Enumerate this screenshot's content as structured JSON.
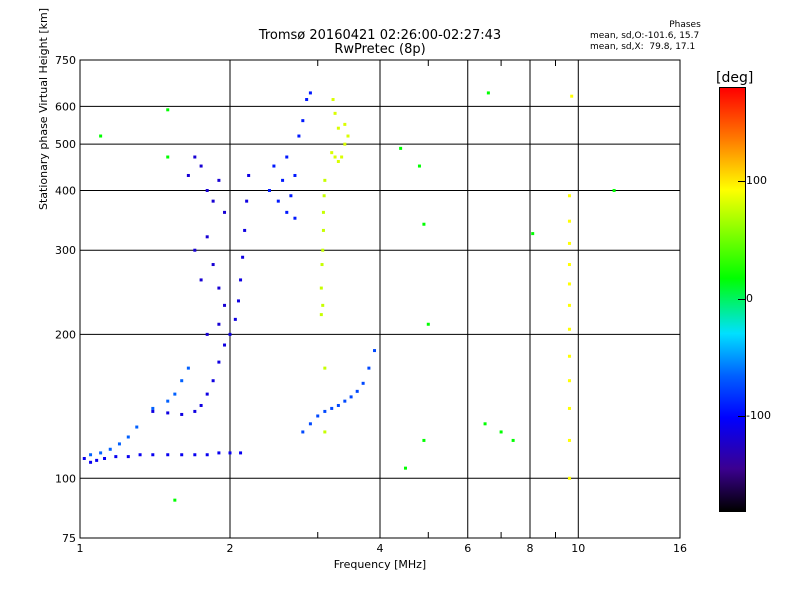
{
  "header": {
    "title_line1": "Tromsø 20160421 02:26:00-02:27:43",
    "title_line2": "RwPretec (8p)"
  },
  "stats": {
    "heading": "Phases",
    "line1": "mean, sd,O:-101.6, 15.7",
    "line2": "mean, sd,X:  79.8, 17.1"
  },
  "colorbar": {
    "label": "[deg]",
    "ticks": [
      "100",
      "0",
      "-100"
    ],
    "tick_values": [
      100,
      0,
      -100
    ],
    "range": [
      -180,
      180
    ]
  },
  "chart_data": {
    "type": "scatter",
    "title": "Tromsø 20160421 02:26:00-02:27:43",
    "subtitle": "RwPretec (8p)",
    "xlabel": "Frequency [MHz]",
    "ylabel": "Stationary phase Virtual Height [km]",
    "x_scale": "log",
    "y_scale": "log",
    "xlim": [
      1,
      16
    ],
    "ylim": [
      75,
      750
    ],
    "x_ticks": [
      1,
      2,
      4,
      6,
      8,
      10,
      16
    ],
    "x_tick_labels": [
      "1",
      "2",
      "4",
      "6",
      "8",
      "10",
      "16"
    ],
    "x_minor": [
      3,
      5,
      7,
      9
    ],
    "y_ticks": [
      75,
      100,
      200,
      300,
      400,
      500,
      600,
      750
    ],
    "y_tick_labels": [
      "75",
      "100",
      "200",
      "300",
      "400",
      "500",
      "600",
      "750"
    ],
    "grid": true,
    "series": [
      {
        "traces": [
          {
            "desc": "O-mode low trace",
            "color_phase": -105,
            "points": [
              [
                1.02,
                110
              ],
              [
                1.05,
                108
              ],
              [
                1.08,
                109
              ],
              [
                1.12,
                110
              ],
              [
                1.18,
                111
              ],
              [
                1.25,
                111
              ],
              [
                1.32,
                112
              ],
              [
                1.4,
                112
              ],
              [
                1.5,
                112
              ],
              [
                1.6,
                112
              ],
              [
                1.7,
                112
              ],
              [
                1.8,
                112
              ],
              [
                1.9,
                113
              ],
              [
                2.0,
                113
              ],
              [
                2.1,
                113
              ]
            ]
          },
          {
            "desc": "low X trace",
            "color_phase": -60,
            "points": [
              [
                1.05,
                112
              ],
              [
                1.1,
                113
              ],
              [
                1.15,
                115
              ],
              [
                1.2,
                118
              ],
              [
                1.25,
                122
              ],
              [
                1.3,
                128
              ],
              [
                1.4,
                140
              ],
              [
                1.5,
                145
              ],
              [
                1.55,
                150
              ],
              [
                1.6,
                160
              ],
              [
                1.65,
                170
              ]
            ]
          },
          {
            "desc": "E-F rise",
            "color_phase": -110,
            "points": [
              [
                1.4,
                138
              ],
              [
                1.5,
                137
              ],
              [
                1.6,
                136
              ],
              [
                1.7,
                138
              ],
              [
                1.75,
                142
              ],
              [
                1.8,
                150
              ],
              [
                1.85,
                160
              ],
              [
                1.9,
                175
              ],
              [
                1.95,
                190
              ],
              [
                2.0,
                200
              ],
              [
                2.05,
                215
              ],
              [
                2.08,
                235
              ],
              [
                2.1,
                260
              ],
              [
                2.12,
                290
              ],
              [
                2.14,
                330
              ],
              [
                2.16,
                380
              ],
              [
                2.18,
                430
              ]
            ]
          },
          {
            "desc": "F cloud",
            "color_phase": -115,
            "points": [
              [
                1.65,
                430
              ],
              [
                1.7,
                470
              ],
              [
                1.75,
                450
              ],
              [
                1.8,
                400
              ],
              [
                1.85,
                380
              ],
              [
                1.9,
                420
              ],
              [
                1.95,
                360
              ],
              [
                1.8,
                320
              ],
              [
                1.85,
                280
              ],
              [
                1.9,
                250
              ],
              [
                1.95,
                230
              ],
              [
                1.9,
                210
              ],
              [
                1.8,
                200
              ],
              [
                1.75,
                260
              ],
              [
                1.7,
                300
              ]
            ]
          },
          {
            "desc": "2.5-3 MHz cluster",
            "color_phase": -90,
            "points": [
              [
                2.4,
                400
              ],
              [
                2.45,
                450
              ],
              [
                2.5,
                380
              ],
              [
                2.55,
                420
              ],
              [
                2.6,
                470
              ],
              [
                2.65,
                390
              ],
              [
                2.7,
                430
              ],
              [
                2.75,
                520
              ],
              [
                2.8,
                560
              ],
              [
                2.85,
                620
              ],
              [
                2.9,
                640
              ],
              [
                2.6,
                360
              ],
              [
                2.7,
                350
              ]
            ]
          },
          {
            "desc": "3-4 MHz mid trace",
            "color_phase": -70,
            "points": [
              [
                2.8,
                125
              ],
              [
                2.9,
                130
              ],
              [
                3.0,
                135
              ],
              [
                3.1,
                138
              ],
              [
                3.2,
                140
              ],
              [
                3.3,
                142
              ],
              [
                3.4,
                145
              ],
              [
                3.5,
                148
              ],
              [
                3.6,
                152
              ],
              [
                3.7,
                158
              ],
              [
                3.8,
                170
              ],
              [
                3.9,
                185
              ]
            ]
          },
          {
            "desc": "X-mode yellow cluster",
            "color_phase": 80,
            "points": [
              [
                3.2,
                480
              ],
              [
                3.25,
                470
              ],
              [
                3.3,
                460
              ],
              [
                3.35,
                470
              ],
              [
                3.4,
                500
              ],
              [
                3.45,
                520
              ],
              [
                3.3,
                540
              ],
              [
                3.25,
                580
              ],
              [
                3.22,
                620
              ],
              [
                3.4,
                550
              ]
            ]
          },
          {
            "desc": "X-mode vertical",
            "color_phase": 70,
            "points": [
              [
                3.05,
                220
              ],
              [
                3.05,
                250
              ],
              [
                3.06,
                280
              ],
              [
                3.07,
                300
              ],
              [
                3.08,
                330
              ],
              [
                3.08,
                360
              ],
              [
                3.09,
                390
              ],
              [
                3.1,
                420
              ],
              [
                3.07,
                230
              ],
              [
                3.1,
                170
              ],
              [
                3.1,
                125
              ]
            ]
          },
          {
            "desc": "sporadic 9-10 MHz",
            "color_phase": 100,
            "points": [
              [
                9.6,
                100
              ],
              [
                9.6,
                120
              ],
              [
                9.6,
                140
              ],
              [
                9.6,
                160
              ],
              [
                9.6,
                180
              ],
              [
                9.6,
                205
              ],
              [
                9.6,
                230
              ],
              [
                9.6,
                255
              ],
              [
                9.6,
                280
              ],
              [
                9.6,
                310
              ],
              [
                9.6,
                345
              ],
              [
                9.6,
                390
              ],
              [
                9.7,
                630
              ]
            ]
          },
          {
            "desc": "scattered",
            "color_phase": 0,
            "points": [
              [
                1.1,
                520
              ],
              [
                1.5,
                590
              ],
              [
                1.5,
                470
              ],
              [
                1.55,
                90
              ],
              [
                4.4,
                490
              ],
              [
                4.8,
                450
              ],
              [
                4.9,
                340
              ],
              [
                5.0,
                210
              ],
              [
                6.5,
                130
              ],
              [
                6.6,
                640
              ],
              [
                7.0,
                125
              ],
              [
                7.4,
                120
              ],
              [
                8.1,
                325
              ],
              [
                11.8,
                400
              ],
              [
                4.5,
                105
              ],
              [
                4.9,
                120
              ]
            ]
          }
        ]
      }
    ]
  }
}
